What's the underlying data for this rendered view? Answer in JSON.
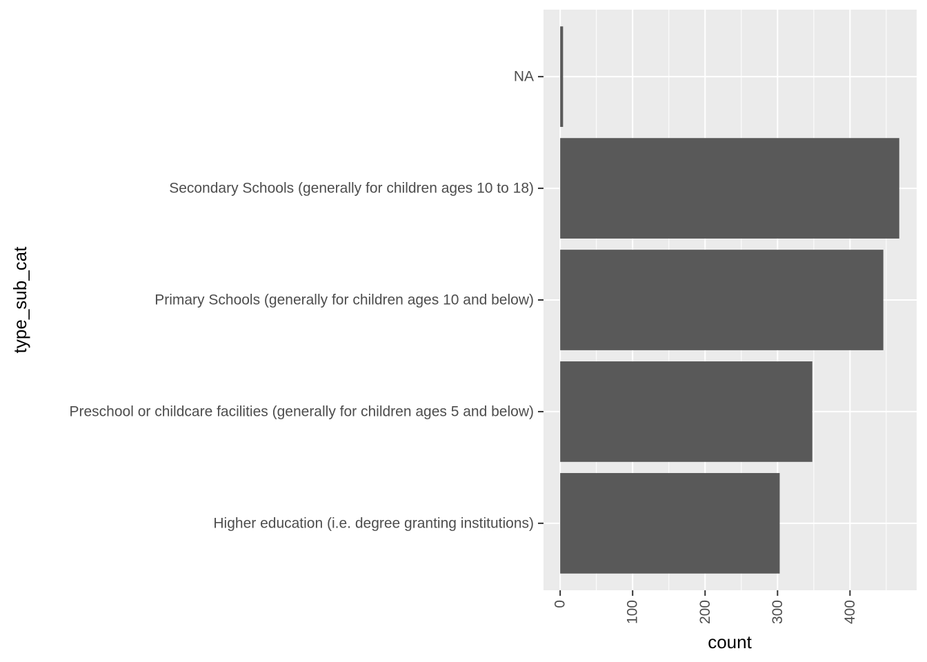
{
  "chart_data": {
    "type": "bar",
    "orientation": "horizontal",
    "categories": [
      "NA",
      "Secondary Schools (generally for children ages 10 to 18)",
      "Primary Schools (generally for children ages 10 and below)",
      "Preschool or childcare facilities (generally for children ages 5 and below)",
      "Higher education (i.e. degree granting institutions)"
    ],
    "values": [
      4,
      468,
      446,
      348,
      303
    ],
    "xlabel": "count",
    "ylabel": "type_sub_cat",
    "xlim": [
      -23,
      492
    ],
    "x_ticks": [
      "0",
      "100",
      "200",
      "300",
      "400"
    ],
    "grid": true,
    "colors": {
      "bar": "#595959",
      "panel": "#ebebeb",
      "grid": "#ffffff",
      "tick": "#333333",
      "tick_label": "#4d4d4d"
    }
  }
}
